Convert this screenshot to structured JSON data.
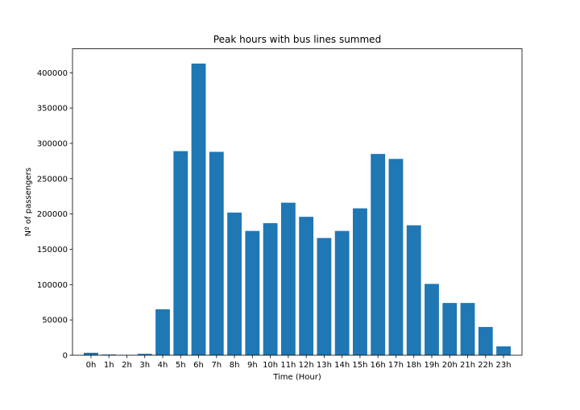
{
  "chart_data": {
    "type": "bar",
    "title": "Peak hours with bus lines summed",
    "xlabel": "Time (Hour)",
    "ylabel": "Nº of passengers",
    "categories": [
      "0h",
      "1h",
      "2h",
      "3h",
      "4h",
      "5h",
      "6h",
      "7h",
      "8h",
      "9h",
      "10h",
      "11h",
      "12h",
      "13h",
      "14h",
      "15h",
      "16h",
      "17h",
      "18h",
      "19h",
      "20h",
      "21h",
      "22h",
      "23h"
    ],
    "values": [
      3500,
      1000,
      300,
      2000,
      65000,
      289000,
      413000,
      288000,
      202000,
      176000,
      187000,
      216000,
      196000,
      166000,
      176000,
      208000,
      285000,
      278000,
      184000,
      101000,
      74000,
      74000,
      40000,
      12500
    ],
    "ylim": [
      0,
      434000
    ],
    "yticks": [
      0,
      50000,
      100000,
      150000,
      200000,
      250000,
      300000,
      350000,
      400000
    ],
    "ytick_labels": [
      "0",
      "50000",
      "100000",
      "150000",
      "200000",
      "250000",
      "300000",
      "350000",
      "400000"
    ],
    "bar_color": "#1f77b4",
    "grid": false,
    "legend": "none"
  }
}
